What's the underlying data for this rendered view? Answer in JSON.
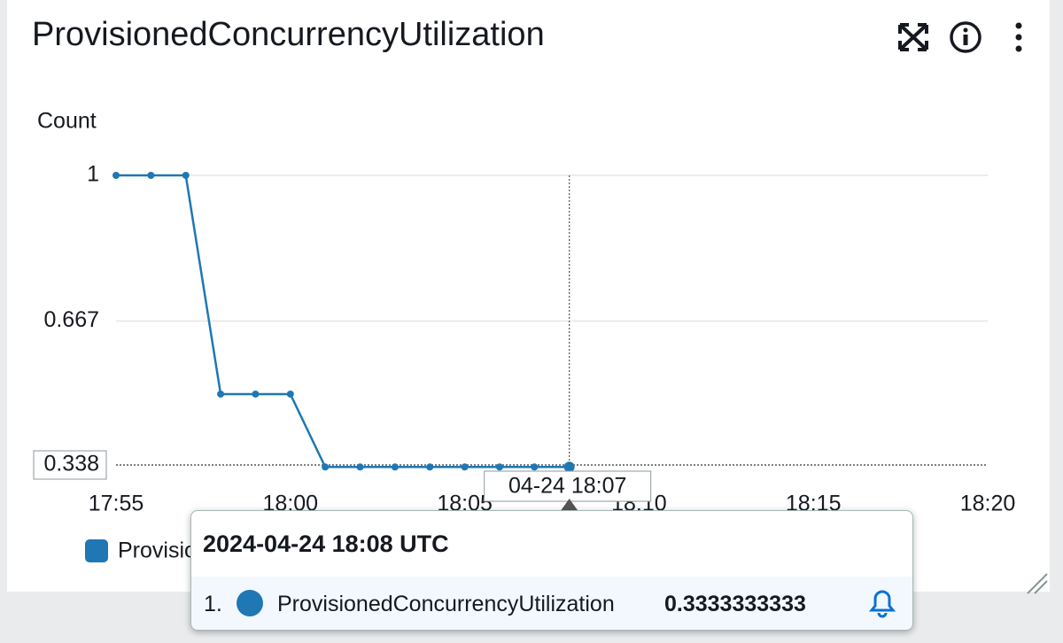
{
  "chart_data": {
    "type": "line",
    "title": "ProvisionedConcurrencyUtilization",
    "y_label": "Count",
    "x": [
      "17:55",
      "17:56",
      "17:57",
      "17:58",
      "17:59",
      "18:00",
      "18:01",
      "18:02",
      "18:03",
      "18:04",
      "18:05",
      "18:06",
      "18:07",
      "18:08"
    ],
    "series": [
      {
        "name": "ProvisionedConcurrencyUtilization",
        "color": "#1f77b4",
        "values": [
          1,
          1,
          1,
          0.5,
          0.5,
          0.5,
          0.3333333333,
          0.3333333333,
          0.3333333333,
          0.3333333333,
          0.3333333333,
          0.3333333333,
          0.3333333333,
          0.3333333333
        ]
      }
    ],
    "xlim": [
      "17:55",
      "18:20"
    ],
    "xticks": [
      "17:55",
      "18:00",
      "18:05",
      "18:10",
      "18:15",
      "18:20"
    ],
    "ylim": [
      0.338,
      1
    ],
    "yticks": [
      0.338,
      0.667,
      1
    ],
    "grid": true
  },
  "crosshair_label": "04-24 18:07",
  "tooltip": {
    "title": "2024-04-24 18:08 UTC",
    "index": "1."
  }
}
